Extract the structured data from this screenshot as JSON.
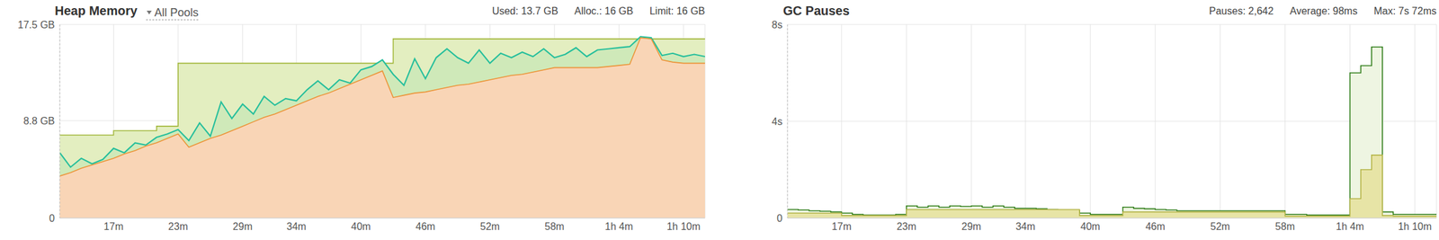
{
  "chart_data": [
    {
      "type": "area",
      "title": "Heap Memory",
      "subtitle": "All Pools",
      "annotations": [
        "Used: 13.7 GB",
        "Alloc.: 16 GB",
        "Limit: 16 GB"
      ],
      "x": [
        12,
        13,
        14,
        15,
        16,
        17,
        18,
        19,
        20,
        21,
        22,
        23,
        24,
        25,
        26,
        27,
        28,
        29,
        30,
        31,
        32,
        33,
        34,
        35,
        36,
        37,
        38,
        39,
        40,
        41,
        42,
        43,
        44,
        45,
        46,
        47,
        48,
        49,
        50,
        51,
        52,
        53,
        54,
        55,
        56,
        57,
        58,
        59,
        60,
        61,
        62,
        63,
        64,
        65,
        66,
        67,
        68,
        69,
        70,
        71,
        72
      ],
      "xlim": [
        12,
        72
      ],
      "xticks": [
        {
          "value": 17,
          "label": "17m"
        },
        {
          "value": 23,
          "label": "23m"
        },
        {
          "value": 29,
          "label": "29m"
        },
        {
          "value": 34,
          "label": "34m"
        },
        {
          "value": 40,
          "label": "40m"
        },
        {
          "value": 46,
          "label": "46m"
        },
        {
          "value": 52,
          "label": "52m"
        },
        {
          "value": 58,
          "label": "58m"
        },
        {
          "value": 64,
          "label": "1h 4m"
        },
        {
          "value": 70,
          "label": "1h 10m"
        }
      ],
      "ylim": [
        0,
        17.5
      ],
      "yticks": [
        0,
        {
          "value": 8.8,
          "label": "8.8 GB"
        },
        {
          "value": 17.5,
          "label": "17.5 GB"
        }
      ],
      "grid": true,
      "series": [
        {
          "color": "#a3b83c",
          "line_style": "step",
          "values": [
            7.5,
            7.5,
            7.5,
            7.5,
            7.5,
            7.9,
            7.9,
            7.9,
            7.9,
            8.3,
            8.3,
            14.0,
            14.0,
            14.0,
            14.0,
            14.0,
            14.0,
            14.0,
            14.0,
            14.0,
            14.0,
            14.0,
            14.0,
            14.0,
            14.0,
            14.0,
            14.0,
            14.0,
            14.0,
            14.0,
            14.0,
            16.2,
            16.2,
            16.2,
            16.2,
            16.2,
            16.2,
            16.2,
            16.2,
            16.2,
            16.2,
            16.2,
            16.2,
            16.2,
            16.2,
            16.2,
            16.2,
            16.2,
            16.2,
            16.2,
            16.2,
            16.2,
            16.2,
            16.2,
            16.2,
            16.2,
            16.2,
            16.2,
            16.2,
            16.2,
            16.2
          ]
        },
        {
          "color": "#26bf9c",
          "line_style": "solid",
          "values": [
            5.9,
            4.6,
            5.4,
            4.9,
            5.3,
            6.3,
            5.9,
            6.8,
            6.6,
            7.3,
            7.6,
            8.0,
            7.0,
            8.6,
            7.4,
            10.5,
            9.0,
            10.3,
            9.4,
            11.0,
            10.2,
            10.8,
            10.6,
            11.6,
            12.4,
            11.6,
            12.5,
            12.2,
            13.4,
            13.7,
            14.3,
            13.0,
            12.0,
            14.4,
            12.6,
            14.5,
            15.3,
            14.5,
            14.0,
            15.2,
            14.0,
            14.9,
            14.5,
            15.0,
            14.6,
            15.3,
            14.5,
            14.8,
            15.4,
            14.6,
            15.2,
            15.3,
            15.4,
            15.5,
            16.4,
            16.3,
            14.7,
            14.9,
            14.6,
            14.8,
            14.6
          ]
        },
        {
          "color": "#ec9438",
          "line_style": "solid",
          "values": [
            3.8,
            4.1,
            4.5,
            4.8,
            5.1,
            5.4,
            5.8,
            6.1,
            6.5,
            6.8,
            7.2,
            7.6,
            6.4,
            6.8,
            7.2,
            7.5,
            7.9,
            8.3,
            8.7,
            9.1,
            9.4,
            9.8,
            10.2,
            10.6,
            11.0,
            11.3,
            11.7,
            12.1,
            12.5,
            12.9,
            13.3,
            10.9,
            11.1,
            11.3,
            11.4,
            11.6,
            11.8,
            12.0,
            12.1,
            12.3,
            12.5,
            12.7,
            12.9,
            13.0,
            13.2,
            13.4,
            13.6,
            13.6,
            13.6,
            13.6,
            13.6,
            13.7,
            13.8,
            13.9,
            16.3,
            16.2,
            14.3,
            14.1,
            14.0,
            14.0,
            14.0
          ]
        }
      ]
    },
    {
      "type": "area",
      "title": "GC Pauses",
      "annotations": [
        "Pauses: 2,642",
        "Average: 98ms",
        "Max: 7s 72ms"
      ],
      "x": [
        12,
        13,
        14,
        15,
        16,
        17,
        18,
        19,
        20,
        21,
        22,
        23,
        24,
        25,
        26,
        27,
        28,
        29,
        30,
        31,
        32,
        33,
        34,
        35,
        36,
        37,
        38,
        39,
        40,
        41,
        42,
        43,
        44,
        45,
        46,
        47,
        48,
        49,
        50,
        51,
        52,
        53,
        54,
        55,
        56,
        57,
        58,
        59,
        60,
        61,
        62,
        63,
        64,
        65,
        66,
        67,
        68,
        69,
        70,
        71,
        72
      ],
      "xlim": [
        12,
        72
      ],
      "xticks": [
        {
          "value": 17,
          "label": "17m"
        },
        {
          "value": 23,
          "label": "23m"
        },
        {
          "value": 29,
          "label": "29m"
        },
        {
          "value": 34,
          "label": "34m"
        },
        {
          "value": 40,
          "label": "40m"
        },
        {
          "value": 46,
          "label": "46m"
        },
        {
          "value": 52,
          "label": "52m"
        },
        {
          "value": 58,
          "label": "58m"
        },
        {
          "value": 64,
          "label": "1h 4m"
        },
        {
          "value": 70,
          "label": "1h 10m"
        }
      ],
      "ylim": [
        0,
        8
      ],
      "yticks": [
        0,
        {
          "value": 4,
          "label": "4s"
        },
        {
          "value": 8,
          "label": "8s"
        }
      ],
      "grid": true,
      "series": [
        {
          "color": "#2f7d18",
          "line_style": "step",
          "values": [
            0.35,
            0.33,
            0.3,
            0.28,
            0.25,
            0.2,
            0.15,
            0.12,
            0.12,
            0.12,
            0.15,
            0.5,
            0.45,
            0.5,
            0.45,
            0.5,
            0.48,
            0.5,
            0.45,
            0.5,
            0.45,
            0.4,
            0.4,
            0.38,
            0.35,
            0.33,
            0.3,
            0.2,
            0.15,
            0.15,
            0.15,
            0.45,
            0.4,
            0.38,
            0.35,
            0.33,
            0.3,
            0.3,
            0.3,
            0.3,
            0.3,
            0.3,
            0.3,
            0.3,
            0.3,
            0.3,
            0.15,
            0.15,
            0.12,
            0.12,
            0.12,
            0.12,
            6.0,
            6.3,
            7.07,
            0.25,
            0.15,
            0.15,
            0.15,
            0.15,
            0.15
          ]
        },
        {
          "color": "#b4b447",
          "line_style": "step",
          "values": [
            0.2,
            0.2,
            0.2,
            0.2,
            0.2,
            0.1,
            0.1,
            0.1,
            0.1,
            0.1,
            0.1,
            0.35,
            0.35,
            0.35,
            0.35,
            0.35,
            0.35,
            0.35,
            0.35,
            0.35,
            0.35,
            0.35,
            0.35,
            0.35,
            0.35,
            0.35,
            0.35,
            0.1,
            0.1,
            0.1,
            0.1,
            0.25,
            0.25,
            0.25,
            0.25,
            0.25,
            0.25,
            0.25,
            0.25,
            0.25,
            0.25,
            0.25,
            0.25,
            0.25,
            0.25,
            0.25,
            0.08,
            0.08,
            0.08,
            0.08,
            0.08,
            0.08,
            0.8,
            2.0,
            2.6,
            0.1,
            0.08,
            0.08,
            0.08,
            0.08,
            0.08
          ]
        }
      ]
    }
  ]
}
